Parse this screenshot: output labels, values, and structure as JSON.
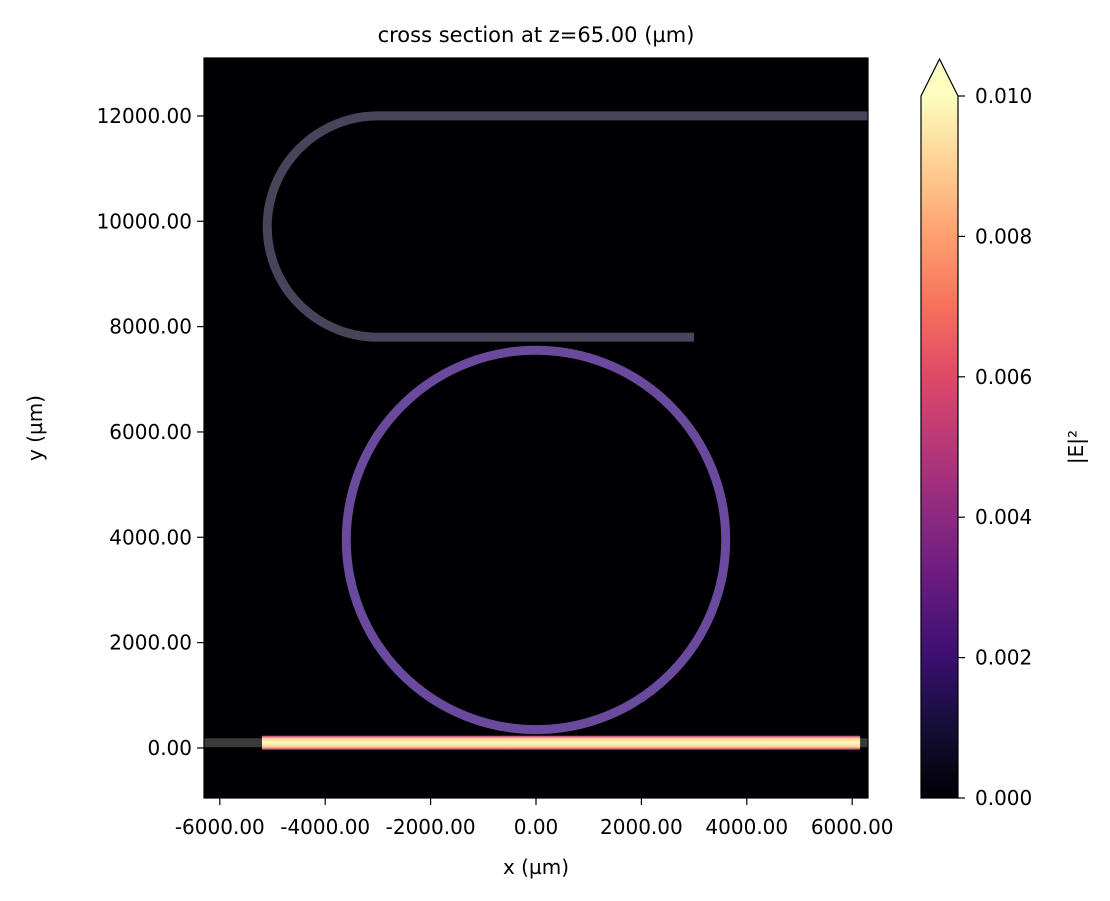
{
  "chart_data": {
    "type": "heatmap",
    "title": "cross section at z=65.00 (µm)",
    "xlabel": "x (µm)",
    "ylabel": "y (µm)",
    "xlim": [
      -6300,
      6300
    ],
    "ylim": [
      -950,
      13100
    ],
    "xticks": [
      -6000,
      -4000,
      -2000,
      0,
      2000,
      4000,
      6000
    ],
    "xtick_labels": [
      "-6000.00",
      "-4000.00",
      "-2000.00",
      "0.00",
      "2000.00",
      "4000.00",
      "6000.00"
    ],
    "yticks": [
      0,
      2000,
      4000,
      6000,
      8000,
      10000,
      12000
    ],
    "ytick_labels": [
      "0.00",
      "2000.00",
      "4000.00",
      "6000.00",
      "8000.00",
      "10000.00",
      "12000.00"
    ],
    "colorbar": {
      "label": "|E|²",
      "range": [
        0,
        0.01
      ],
      "ticks": [
        0,
        0.002,
        0.004,
        0.006,
        0.008,
        0.01
      ],
      "tick_labels": [
        "0.000",
        "0.002",
        "0.004",
        "0.006",
        "0.008",
        "0.010"
      ],
      "extend": "max",
      "colormap": "magma"
    },
    "structures": {
      "bus_waveguide": {
        "x_range": [
          -6300,
          6300
        ],
        "y": 100,
        "color": "#3a3a3a"
      },
      "bus_field": {
        "x_range": [
          -5200,
          6150
        ],
        "y": 100,
        "intensity": 0.01
      },
      "ring": {
        "cx": 0,
        "cy": 3950,
        "r": 3600,
        "field_color": "#6a4a9c"
      },
      "loop_waveguide": {
        "top_y": 12000,
        "bottom_y": 7800,
        "bend_center_x": -3000,
        "top_end_x": 6300,
        "bottom_end_x": 3000,
        "color": "#474559"
      }
    }
  }
}
